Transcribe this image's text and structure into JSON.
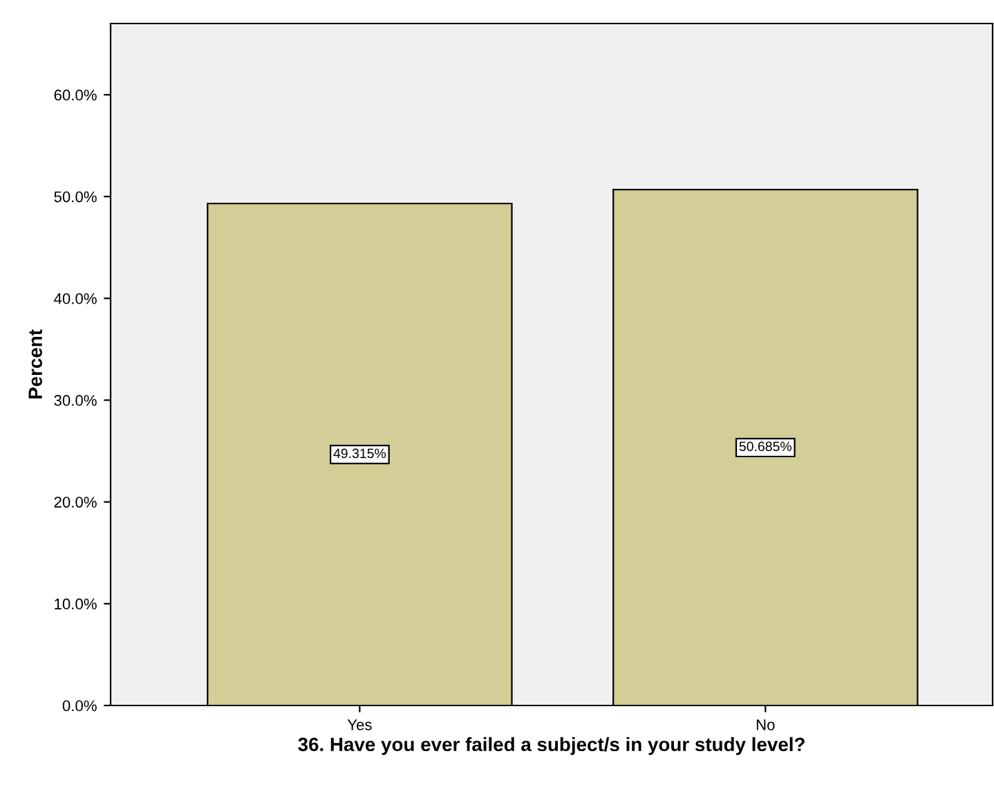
{
  "chart_data": {
    "type": "bar",
    "xlabel": "36. Have you ever failed a subject/s in your study level?",
    "ylabel": "Percent",
    "categories": [
      "Yes",
      "No"
    ],
    "values": [
      49.315,
      50.685
    ],
    "value_labels": [
      "49.315%",
      "50.685%"
    ],
    "color": "#d3ce97",
    "ylim": [
      0,
      67
    ],
    "yticks": [
      {
        "value": 0,
        "label": "0.0%"
      },
      {
        "value": 10,
        "label": "10.0%"
      },
      {
        "value": 20,
        "label": "20.0%"
      },
      {
        "value": 30,
        "label": "30.0%"
      },
      {
        "value": 40,
        "label": "40.0%"
      },
      {
        "value": 50,
        "label": "50.0%"
      },
      {
        "value": 60,
        "label": "60.0%"
      }
    ],
    "grid": false
  }
}
